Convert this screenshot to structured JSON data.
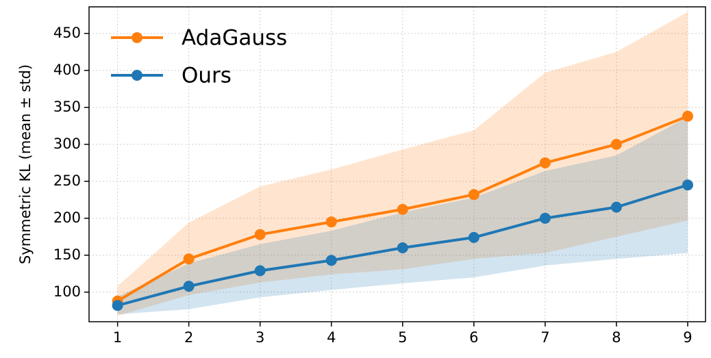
{
  "chart_data": {
    "type": "line",
    "ylabel": "Symmetric KL (mean ± std)",
    "x": [
      1,
      2,
      3,
      4,
      5,
      6,
      7,
      8,
      9
    ],
    "series": [
      {
        "name": "AdaGauss",
        "color": "#ff7f0e",
        "values": [
          88,
          145,
          178,
          195,
          212,
          232,
          275,
          300,
          338
        ],
        "std": [
          20,
          49,
          65,
          71,
          81,
          87,
          122,
          125,
          141
        ]
      },
      {
        "name": "Ours",
        "color": "#1f77b4",
        "values": [
          82,
          108,
          129,
          143,
          160,
          174,
          200,
          215,
          245
        ],
        "std": [
          12,
          31,
          36,
          40,
          48,
          54,
          64,
          70,
          92
        ]
      }
    ],
    "xlim": [
      0.6,
      9.25
    ],
    "ylim": [
      60,
      486
    ],
    "xticks": [
      1,
      2,
      3,
      4,
      5,
      6,
      7,
      8,
      9
    ],
    "yticks": [
      100,
      150,
      200,
      250,
      300,
      350,
      400,
      450
    ],
    "grid": true,
    "legend": "upper left"
  }
}
